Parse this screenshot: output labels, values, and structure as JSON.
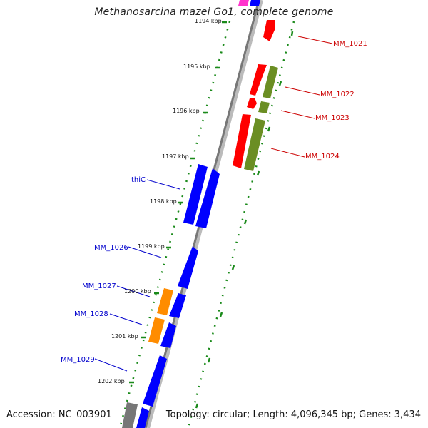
{
  "title": "Methanosarcina mazei Go1, complete genome",
  "accession": "Accession: NC_003901",
  "topology": "Topology: circular; Length: 4,096,345 bp; Genes: 3,434",
  "colors": {
    "forward_cds": "#ff0000",
    "forward_other": "#6b8e23",
    "reverse_cds": "#0000ff",
    "reverse_other": "#ff8c00",
    "backbone": "#888888",
    "tick": "#1a8a1a",
    "label_forward": "#cc0000",
    "label_reverse": "#0000cc"
  },
  "kbp_ticks": [
    "1194 kbp",
    "1195 kbp",
    "1196 kbp",
    "1197 kbp",
    "1198 kbp",
    "1199 kbp",
    "1200 kbp",
    "1201 kbp",
    "1202 kbp"
  ],
  "gene_labels": {
    "mm1021": "MM_1021",
    "mm1022": "MM_1022",
    "mm1023": "MM_1023",
    "mm1024": "MM_1024",
    "thic": "thiC",
    "mm1026": "MM_1026",
    "mm1027": "MM_1027",
    "mm1028": "MM_1028",
    "mm1029": "MM_1029"
  }
}
